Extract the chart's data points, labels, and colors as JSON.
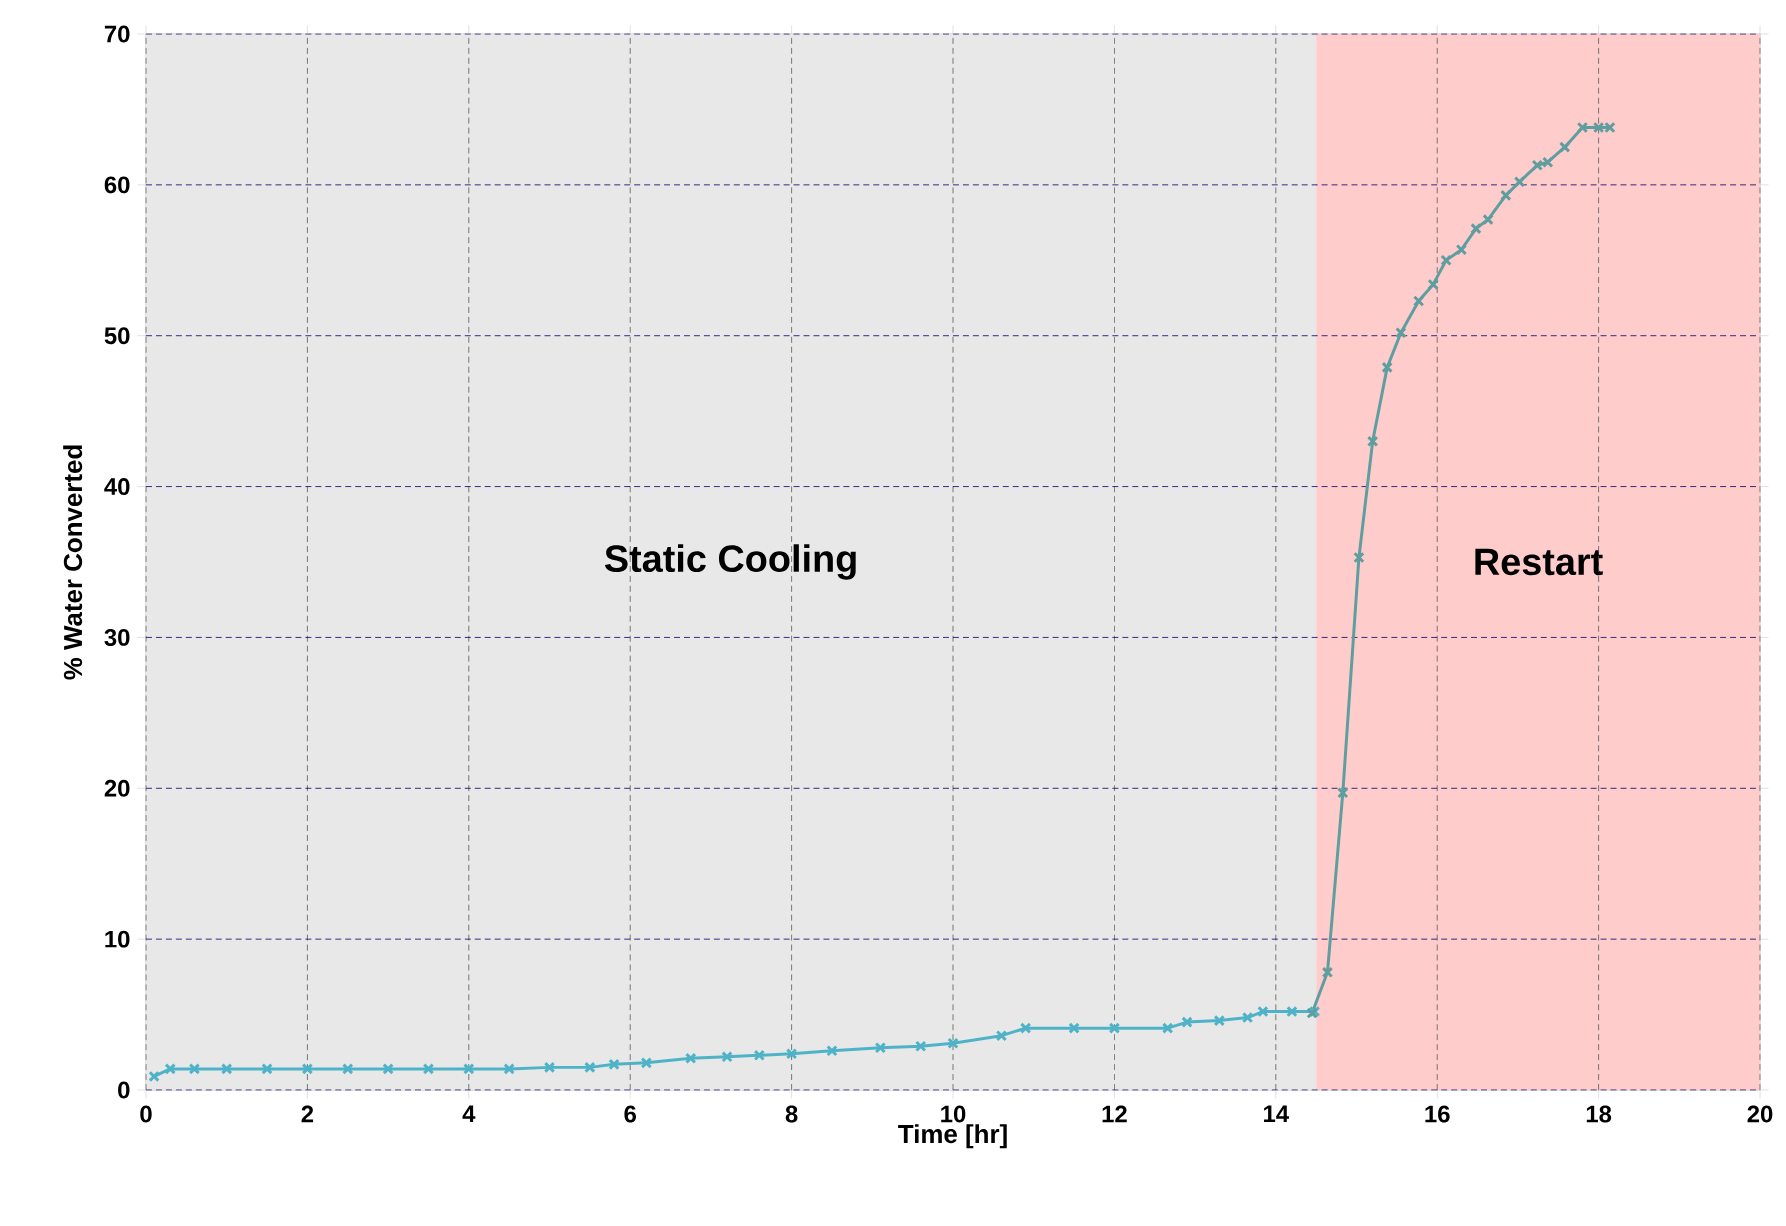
{
  "chart_data": {
    "type": "line",
    "xlabel": "Time [hr]",
    "ylabel": "% Water Converted",
    "xlim": [
      0,
      20
    ],
    "ylim": [
      0,
      70
    ],
    "xticks": [
      0,
      2,
      4,
      6,
      8,
      10,
      12,
      14,
      16,
      18,
      20
    ],
    "yticks": [
      0,
      10,
      20,
      30,
      40,
      50,
      60,
      70
    ],
    "grid": true,
    "marker": "cross",
    "line_style": "solid",
    "bands": [
      {
        "axis": "x",
        "from": 0,
        "to": 14.5,
        "label": "Static Cooling",
        "color": "#e8e8e8"
      },
      {
        "axis": "x",
        "from": 14.5,
        "to": 20,
        "label": "Restart",
        "color": "#ffcccc"
      }
    ],
    "series": [
      {
        "color": "#4fb3c8",
        "x": [
          0.1,
          0.3,
          0.6,
          1,
          1.5,
          2,
          2.5,
          3,
          3.5,
          4,
          4.5,
          5,
          5.5,
          5.8,
          6.2,
          6.75,
          7.2,
          7.6,
          8.0,
          8.5,
          9.1,
          9.6,
          10.0,
          10.6,
          10.9,
          11.5,
          12.0,
          12.66,
          12.9,
          13.3,
          13.65,
          13.84,
          14.2,
          14.48
        ],
        "values": [
          0.9,
          1.4,
          1.4,
          1.4,
          1.4,
          1.4,
          1.4,
          1.4,
          1.4,
          1.4,
          1.4,
          1.5,
          1.5,
          1.7,
          1.8,
          2.1,
          2.2,
          2.3,
          2.4,
          2.6,
          2.8,
          2.9,
          3.1,
          3.6,
          4.1,
          4.1,
          4.1,
          4.1,
          4.5,
          4.6,
          4.8,
          5.2,
          5.2,
          5.2
        ]
      },
      {
        "color": "#5f9ea0",
        "x": [
          14.45,
          14.64,
          14.83,
          15.03,
          15.2,
          15.38,
          15.55,
          15.77,
          15.95,
          16.11,
          16.3,
          16.48,
          16.63,
          16.85,
          17.02,
          17.24,
          17.37,
          17.58,
          17.8,
          18.0,
          18.14
        ],
        "values": [
          5.1,
          7.8,
          19.7,
          35.3,
          43.0,
          47.9,
          50.2,
          52.3,
          53.4,
          55.0,
          55.7,
          57.1,
          57.7,
          59.3,
          60.2,
          61.3,
          61.5,
          62.5,
          63.8,
          63.8,
          63.8
        ]
      }
    ]
  }
}
